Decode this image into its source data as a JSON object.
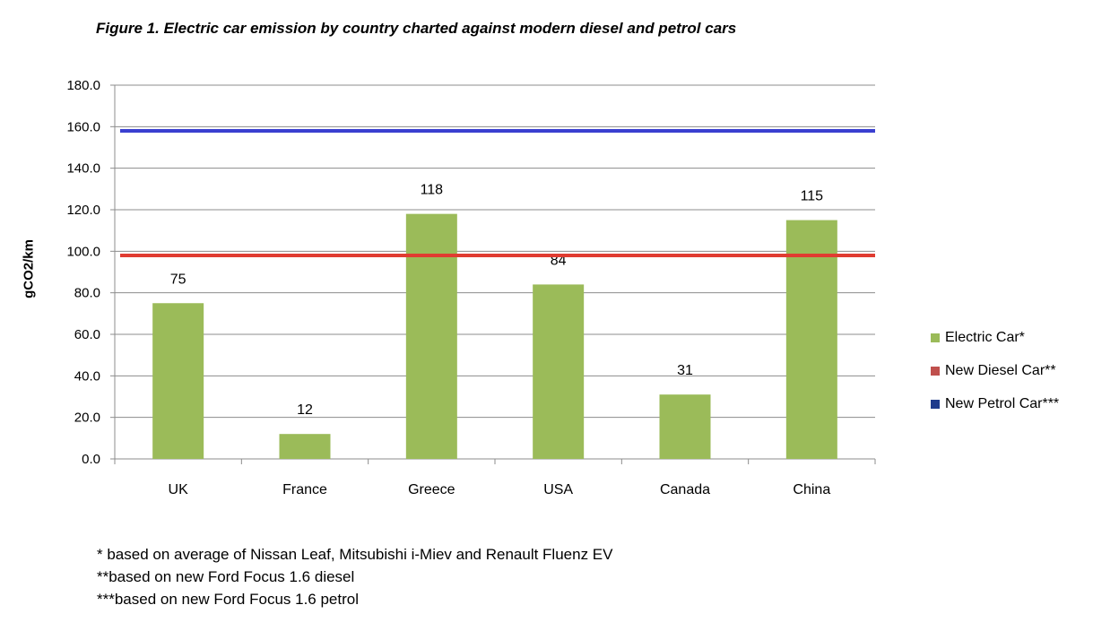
{
  "caption": "Figure 1. Electric car emission by country charted against modern diesel and petrol cars",
  "chart_data": {
    "type": "bar",
    "title": "",
    "xlabel": "",
    "ylabel": "gCO2/km",
    "categories": [
      "UK",
      "France",
      "Greece",
      "USA",
      "Canada",
      "China"
    ],
    "ylim": [
      0,
      180
    ],
    "yticks": [
      "0.0",
      "20.0",
      "40.0",
      "60.0",
      "80.0",
      "100.0",
      "120.0",
      "140.0",
      "160.0",
      "180.0"
    ],
    "grid": true,
    "legend_position": "right",
    "series": [
      {
        "name": "Electric Car*",
        "kind": "bar",
        "color": "#9bbb59",
        "values": [
          75,
          12,
          118,
          84,
          31,
          115
        ],
        "labels": [
          "75",
          "12",
          "118",
          "84",
          "31",
          "115"
        ]
      },
      {
        "name": "New Diesel Car**",
        "kind": "line",
        "color": "#e03c31",
        "values": [
          98,
          98,
          98,
          98,
          98,
          98
        ]
      },
      {
        "name": "New Petrol Car***",
        "kind": "line",
        "color": "#3a3fd0",
        "values": [
          158,
          158,
          158,
          158,
          158,
          158
        ]
      }
    ]
  },
  "legend": [
    {
      "label": "Electric Car*",
      "color": "#9bbb59"
    },
    {
      "label": "New Diesel Car**",
      "color": "#c0504d"
    },
    {
      "label": "New Petrol Car***",
      "color": "#1f3b8c"
    }
  ],
  "notes": [
    "* based on average of Nissan Leaf, Mitsubishi i-Miev and Renault Fluenz EV",
    "**based on new Ford Focus 1.6 diesel",
    "***based on new Ford Focus 1.6 petrol"
  ]
}
